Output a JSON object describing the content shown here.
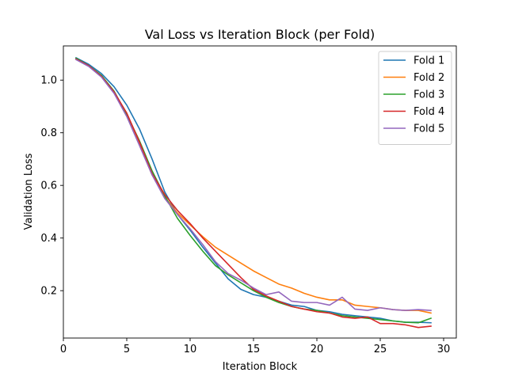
{
  "chart_data": {
    "type": "line",
    "title": "Val Loss vs Iteration Block (per Fold)",
    "xlabel": "Iteration Block",
    "ylabel": "Validation Loss",
    "xlim": [
      0,
      31
    ],
    "ylim": [
      0.02,
      1.13
    ],
    "xticks": [
      0,
      5,
      10,
      15,
      20,
      25,
      30
    ],
    "yticks": [
      0.2,
      0.4,
      0.6,
      0.8,
      1.0
    ],
    "ytick_labels": [
      "0.2",
      "0.4",
      "0.6",
      "0.8",
      "1.0"
    ],
    "grid": false,
    "legend_position": "top-right",
    "x": [
      1,
      2,
      3,
      4,
      5,
      6,
      7,
      8,
      9,
      10,
      11,
      12,
      13,
      14,
      15,
      16,
      17,
      18,
      19,
      20,
      21,
      22,
      23,
      24,
      25,
      26,
      27,
      28,
      29
    ],
    "series": [
      {
        "name": "Fold 1",
        "color": "#1f77b4",
        "values": [
          1.085,
          1.06,
          1.025,
          0.975,
          0.905,
          0.815,
          0.7,
          0.575,
          0.49,
          0.43,
          0.365,
          0.305,
          0.245,
          0.205,
          0.185,
          0.175,
          0.16,
          0.145,
          0.14,
          0.125,
          0.12,
          0.11,
          0.105,
          0.1,
          0.095,
          0.085,
          0.08,
          0.08,
          0.078
        ]
      },
      {
        "name": "Fold 2",
        "color": "#ff7f0e",
        "values": [
          1.08,
          1.055,
          1.015,
          0.955,
          0.865,
          0.755,
          0.64,
          0.555,
          0.495,
          0.45,
          0.405,
          0.365,
          0.335,
          0.305,
          0.275,
          0.25,
          0.225,
          0.21,
          0.19,
          0.175,
          0.165,
          0.165,
          0.145,
          0.14,
          0.135,
          0.128,
          0.125,
          0.125,
          0.115
        ]
      },
      {
        "name": "Fold 3",
        "color": "#2ca02c",
        "values": [
          1.083,
          1.055,
          1.018,
          0.958,
          0.87,
          0.77,
          0.655,
          0.56,
          0.475,
          0.41,
          0.35,
          0.295,
          0.26,
          0.23,
          0.2,
          0.175,
          0.155,
          0.14,
          0.13,
          0.125,
          0.115,
          0.105,
          0.1,
          0.095,
          0.09,
          0.085,
          0.08,
          0.078,
          0.095
        ]
      },
      {
        "name": "Fold 4",
        "color": "#d62728",
        "values": [
          1.08,
          1.055,
          1.015,
          0.955,
          0.875,
          0.765,
          0.645,
          0.565,
          0.505,
          0.455,
          0.4,
          0.35,
          0.3,
          0.25,
          0.205,
          0.18,
          0.16,
          0.14,
          0.13,
          0.12,
          0.115,
          0.1,
          0.095,
          0.1,
          0.075,
          0.075,
          0.07,
          0.06,
          0.065
        ]
      },
      {
        "name": "Fold 5",
        "color": "#9467bd",
        "values": [
          1.078,
          1.052,
          1.012,
          0.95,
          0.862,
          0.752,
          0.64,
          0.55,
          0.49,
          0.435,
          0.375,
          0.31,
          0.265,
          0.24,
          0.21,
          0.185,
          0.195,
          0.16,
          0.155,
          0.155,
          0.145,
          0.175,
          0.13,
          0.125,
          0.135,
          0.128,
          0.125,
          0.128,
          0.125
        ]
      }
    ]
  }
}
